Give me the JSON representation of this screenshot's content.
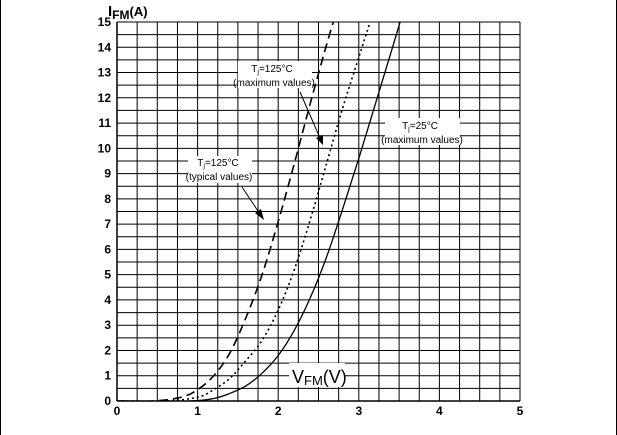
{
  "chart_data": {
    "type": "line",
    "ylabel_main": "I",
    "ylabel_sub": "FM",
    "ylabel_unit": "(A)",
    "xlabel_main": "V",
    "xlabel_sub": "FM",
    "xlabel_unit": "(V)",
    "xlim": [
      0,
      5
    ],
    "ylim": [
      0,
      15
    ],
    "x_ticks": [
      "0",
      "1",
      "2",
      "3",
      "4",
      "5"
    ],
    "y_ticks": [
      "0",
      "1",
      "2",
      "3",
      "4",
      "5",
      "6",
      "7",
      "8",
      "9",
      "10",
      "11",
      "12",
      "13",
      "14",
      "15"
    ],
    "grid": true,
    "series": [
      {
        "name": "Tj=125°C (typical values)",
        "style": "dashed",
        "x": [
          0.45,
          0.8,
          1.0,
          1.2,
          1.4,
          1.6,
          1.8,
          2.0,
          2.2,
          2.4,
          2.6,
          2.75
        ],
        "y": [
          0,
          0.15,
          0.45,
          1.0,
          1.9,
          3.3,
          5.0,
          7.1,
          9.4,
          11.8,
          14.1,
          15.7
        ]
      },
      {
        "name": "Tj=125°C (maximum values)",
        "style": "dotted",
        "x": [
          0.6,
          1.0,
          1.2,
          1.4,
          1.6,
          1.8,
          2.0,
          2.2,
          2.4,
          2.6,
          2.8,
          3.0,
          3.2
        ],
        "y": [
          0,
          0.15,
          0.45,
          0.9,
          1.6,
          2.4,
          3.6,
          5.2,
          7.2,
          9.4,
          11.6,
          13.6,
          15.6
        ]
      },
      {
        "name": "Tj=25°C (maximum values)",
        "style": "solid",
        "x": [
          0.9,
          1.2,
          1.4,
          1.6,
          1.8,
          2.0,
          2.2,
          2.4,
          2.6,
          2.8,
          3.0,
          3.2,
          3.4,
          3.55
        ],
        "y": [
          0,
          0.1,
          0.3,
          0.6,
          1.1,
          1.8,
          2.8,
          4.1,
          5.7,
          7.6,
          9.6,
          11.7,
          13.8,
          15.4
        ]
      }
    ],
    "annotations": [
      {
        "series": 0,
        "main": "T",
        "sub": "j",
        "rest": "=125°C",
        "line2": "(typical values)"
      },
      {
        "series": 1,
        "main": "T",
        "sub": "j",
        "rest": "=125°C",
        "line2": "(maximum values)"
      },
      {
        "series": 2,
        "main": "T",
        "sub": "j",
        "rest": "=25°C",
        "line2": "(maximum values)"
      }
    ]
  }
}
